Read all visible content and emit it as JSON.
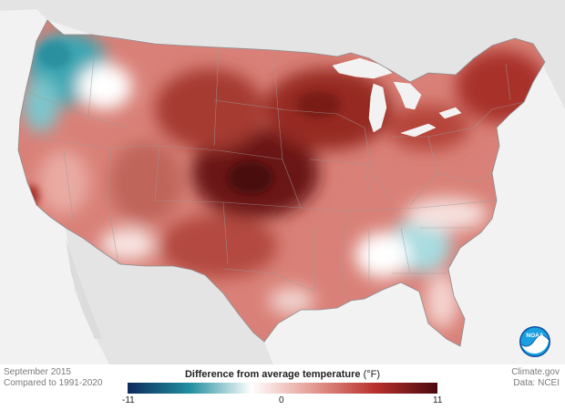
{
  "caption": {
    "date": "September 2015",
    "baseline": "Compared to 1991-2020"
  },
  "credit": {
    "source": "Climate.gov",
    "data": "Data: NCEI"
  },
  "legend": {
    "title": "Difference from average temperature",
    "unit": "(°F)",
    "min_label": "-11",
    "mid_label": "0",
    "max_label": "11",
    "colors": [
      "#0d2a5c",
      "#1f8fa0",
      "#ffffff",
      "#e49a92",
      "#b8302c",
      "#4a0a0e"
    ]
  },
  "logo": {
    "icon": "noaa-logo",
    "text": "NOAA"
  }
}
